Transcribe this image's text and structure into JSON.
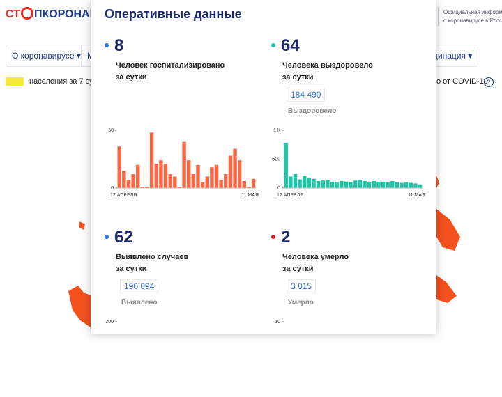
{
  "header": {
    "logo_red": "СТ",
    "logo_blue": "ПКОРОНАВИ",
    "info_line1": "Официальная информа",
    "info_line2": "о коронавирусе в Росси"
  },
  "nav": {
    "item1": "О коронавирусе ▾",
    "item2": "М",
    "item3": "цинация ▾"
  },
  "legend": {
    "left": "населения за 7 сут",
    "right": "о от COVID-19",
    "help": "?"
  },
  "modal": {
    "title": "Оперативные данные",
    "cards": [
      {
        "number": "8",
        "line1": "Человек госпитализировано",
        "line2": "за сутки",
        "color": "#2f6fe4",
        "chart": {
          "type": "bar",
          "color": "#f26a4a",
          "ylim": [
            0,
            50
          ],
          "yticks": [
            0,
            50
          ],
          "xlabels": [
            "12 АПРЕЛЯ",
            "11 МАЯ"
          ],
          "values": [
            36,
            15,
            7,
            12,
            20,
            1,
            1,
            48,
            21,
            24,
            21,
            12,
            10,
            1,
            40,
            24,
            12,
            20,
            5,
            10,
            18,
            20,
            7,
            12,
            28,
            34,
            24,
            6,
            1,
            8
          ]
        }
      },
      {
        "number": "64",
        "line1": "Человека выздоровело",
        "line2": "за сутки",
        "total": "184 490",
        "total_label": "Выздоровело",
        "color": "#1cc6a6",
        "chart": {
          "type": "bar",
          "color": "#1cc6a6",
          "ylim": [
            0,
            1000
          ],
          "yticks": [
            0,
            500,
            {
              "value": 1000,
              "label": "1 К"
            }
          ],
          "xlabels": [
            "12 АПРЕЛЯ",
            "11 МАЯ"
          ],
          "values": [
            780,
            200,
            240,
            150,
            210,
            180,
            160,
            120,
            130,
            140,
            110,
            100,
            120,
            110,
            100,
            130,
            140,
            120,
            100,
            120,
            110,
            110,
            100,
            120,
            100,
            90,
            100,
            90,
            80,
            64
          ]
        }
      },
      {
        "number": "62",
        "line1": "Выявлено случаев",
        "line2": "за сутки",
        "total": "190 094",
        "total_label": "Выявлено",
        "color": "#2f6fe4",
        "chart": {
          "yticks": [
            200
          ]
        }
      },
      {
        "number": "2",
        "line1": "Человека умерло",
        "line2": "за сутки",
        "total": "3 815",
        "total_label": "Умерло",
        "color": "#d0202a",
        "chart": {
          "yticks": [
            10
          ]
        }
      }
    ]
  }
}
